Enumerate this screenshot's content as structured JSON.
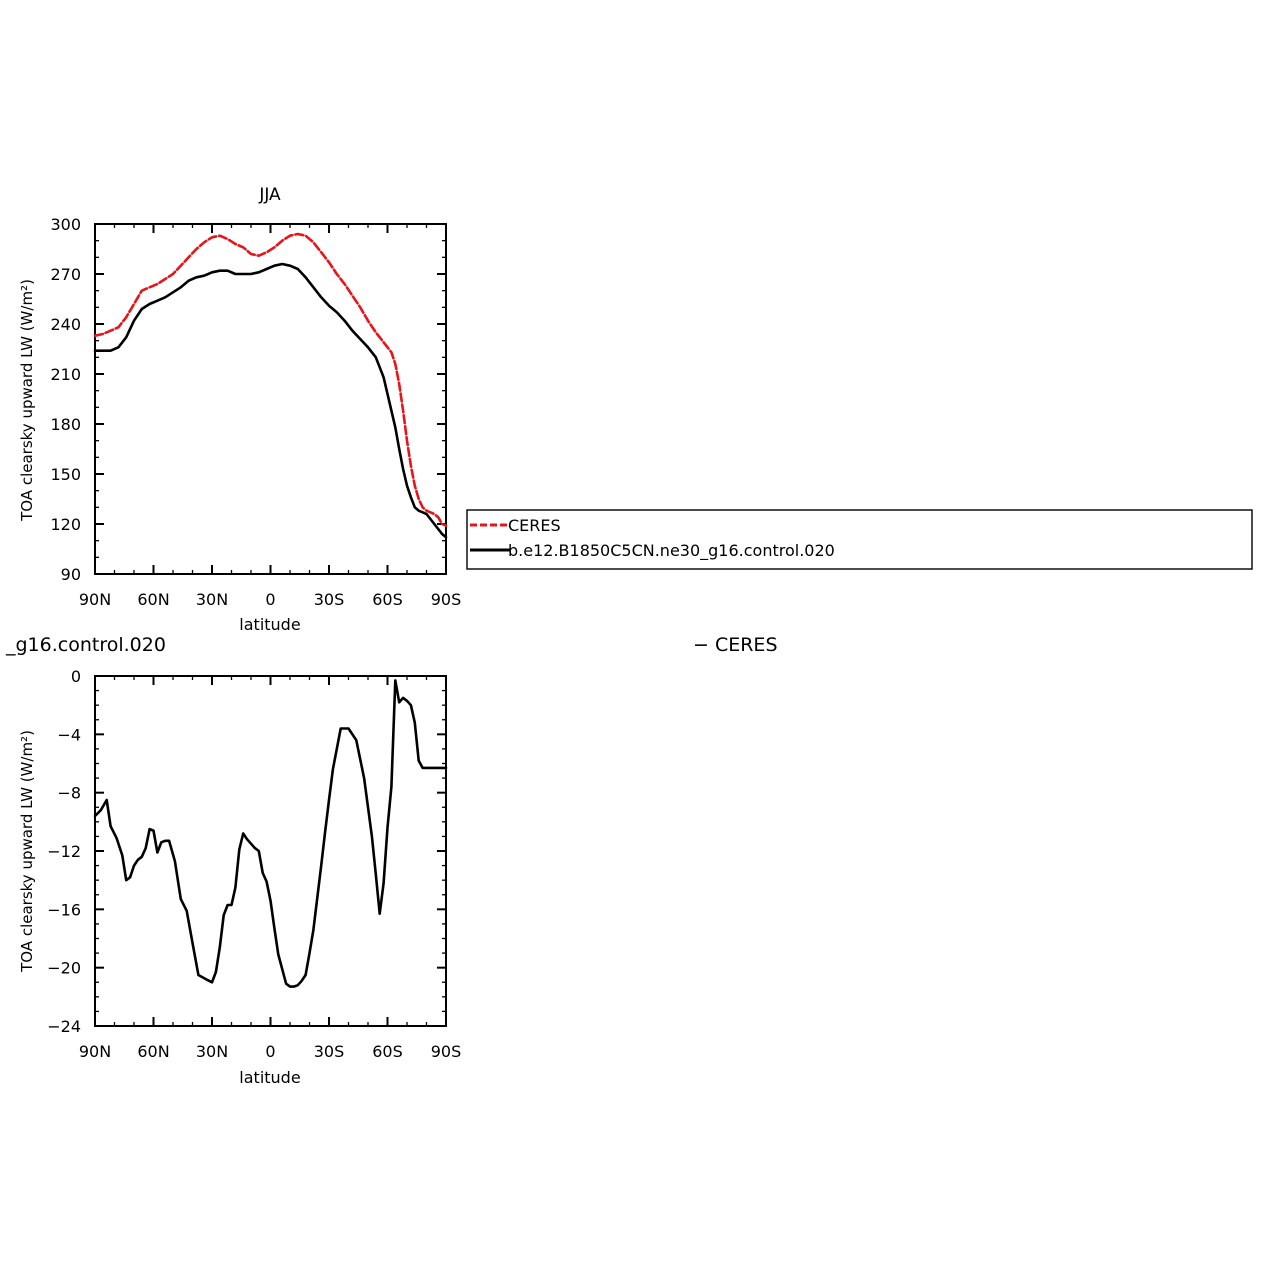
{
  "chart_data": [
    {
      "type": "line",
      "title": "JJA",
      "xlabel": "latitude",
      "ylabel": "TOA clearsky upward LW (W/m²)",
      "xlim": [
        90,
        -90
      ],
      "ylim": [
        90,
        300
      ],
      "x_ticks": [
        90,
        60,
        30,
        0,
        -30,
        -60,
        -90
      ],
      "x_tick_labels": [
        "90N",
        "60N",
        "30N",
        "0",
        "30S",
        "60S",
        "90S"
      ],
      "y_ticks": [
        90,
        120,
        150,
        180,
        210,
        240,
        270,
        300
      ],
      "y_tick_labels": [
        "90",
        "120",
        "150",
        "180",
        "210",
        "240",
        "270",
        "300"
      ],
      "grid": false,
      "legend": {
        "placement": "right",
        "entries": [
          "CERES",
          "b.e12.B1850C5CN.ne30_g16.control.020"
        ]
      },
      "series": [
        {
          "name": "CERES",
          "color": "#e8141a",
          "style": "dashed",
          "x": [
            90,
            86,
            82,
            78,
            74,
            70,
            66,
            62,
            58,
            54,
            50,
            46,
            42,
            38,
            34,
            30,
            26,
            22,
            18,
            14,
            10,
            6,
            2,
            -2,
            -6,
            -10,
            -14,
            -18,
            -22,
            -26,
            -30,
            -34,
            -38,
            -42,
            -46,
            -50,
            -54,
            -58,
            -60,
            -62,
            -64,
            -66,
            -68,
            -70,
            -72,
            -74,
            -76,
            -78,
            -80,
            -82,
            -84,
            -86,
            -88,
            -90
          ],
          "y": [
            233,
            234,
            236,
            238,
            244,
            252,
            260,
            262,
            264,
            267,
            270,
            275,
            280,
            285,
            289,
            292,
            293,
            291,
            288,
            286,
            282,
            281,
            283,
            286,
            290,
            293,
            294,
            293,
            289,
            283,
            277,
            270,
            264,
            257,
            250,
            242,
            235,
            229,
            226,
            223,
            216,
            204,
            188,
            170,
            155,
            143,
            135,
            130,
            128,
            127,
            126,
            124,
            120,
            119
          ]
        },
        {
          "name": "b.e12.B1850C5CN.ne30_g16.control.020",
          "color": "#000000",
          "style": "solid",
          "x": [
            90,
            86,
            82,
            78,
            74,
            70,
            66,
            62,
            58,
            54,
            50,
            46,
            42,
            38,
            34,
            30,
            26,
            22,
            18,
            14,
            10,
            6,
            2,
            -2,
            -6,
            -10,
            -14,
            -18,
            -22,
            -26,
            -30,
            -34,
            -38,
            -42,
            -46,
            -50,
            -54,
            -58,
            -60,
            -62,
            -64,
            -66,
            -68,
            -70,
            -72,
            -74,
            -76,
            -78,
            -80,
            -82,
            -84,
            -86,
            -88,
            -90
          ],
          "y": [
            224,
            224,
            224,
            226,
            232,
            242,
            249,
            252,
            254,
            256,
            259,
            262,
            266,
            268,
            269,
            271,
            272,
            272,
            270,
            270,
            270,
            271,
            273,
            275,
            276,
            275,
            273,
            268,
            262,
            256,
            251,
            247,
            242,
            236,
            231,
            226,
            220,
            208,
            198,
            188,
            178,
            165,
            153,
            143,
            136,
            130,
            128,
            127,
            126,
            123,
            120,
            117,
            114,
            112
          ]
        }
      ]
    },
    {
      "type": "line",
      "title": "_g16.control.020",
      "title_right": "− CERES",
      "xlabel": "latitude",
      "ylabel": "TOA clearsky upward LW (W/m²)",
      "xlim": [
        90,
        -90
      ],
      "ylim": [
        -24,
        0
      ],
      "x_ticks": [
        90,
        60,
        30,
        0,
        -30,
        -60,
        -90
      ],
      "x_tick_labels": [
        "90N",
        "60N",
        "30N",
        "0",
        "30S",
        "60S",
        "90S"
      ],
      "y_ticks": [
        0,
        -4,
        -8,
        -12,
        -16,
        -20,
        -24
      ],
      "y_tick_labels": [
        "0",
        "−4",
        "−8",
        "−12",
        "−16",
        "−20",
        "−24"
      ],
      "grid": false,
      "series": [
        {
          "color": "#000000",
          "style": "solid",
          "x": [
            90,
            87,
            84,
            82,
            79,
            76,
            74,
            72,
            70,
            68,
            66,
            64,
            62,
            60,
            58,
            56,
            54,
            52,
            49,
            46,
            43,
            40,
            37,
            33,
            30,
            28,
            26,
            24,
            22,
            20,
            18,
            16,
            14,
            12,
            10,
            8,
            6,
            4,
            2,
            0,
            -2,
            -4,
            -6,
            -8,
            -10,
            -12,
            -14,
            -16,
            -18,
            -20,
            -22,
            -24,
            -26,
            -28,
            -30,
            -32,
            -36,
            -40,
            -44,
            -48,
            -52,
            -54,
            -56,
            -58,
            -60,
            -62,
            -64,
            -66,
            -68,
            -70,
            -72,
            -74,
            -76,
            -78,
            -80,
            -82,
            -84,
            -86,
            -88,
            -90
          ],
          "y": [
            -9.6,
            -9.2,
            -8.5,
            -10.3,
            -11.1,
            -12.3,
            -14.0,
            -13.8,
            -13.0,
            -12.6,
            -12.4,
            -11.8,
            -10.5,
            -10.6,
            -12.1,
            -11.4,
            -11.3,
            -11.3,
            -12.7,
            -15.3,
            -16.1,
            -18.3,
            -20.5,
            -20.8,
            -21.0,
            -20.3,
            -18.6,
            -16.4,
            -15.7,
            -15.7,
            -14.5,
            -11.9,
            -10.8,
            -11.2,
            -11.5,
            -11.8,
            -12.0,
            -13.5,
            -14.1,
            -15.4,
            -17.3,
            -19.1,
            -20.1,
            -21.1,
            -21.3,
            -21.3,
            -21.2,
            -20.9,
            -20.5,
            -19.0,
            -17.4,
            -15.2,
            -13.0,
            -10.7,
            -8.5,
            -6.4,
            -3.6,
            -3.6,
            -4.4,
            -7.0,
            -11.0,
            -13.6,
            -16.3,
            -14.2,
            -10.4,
            -7.6,
            -0.3,
            -1.8,
            -1.5,
            -1.7,
            -2.0,
            -3.2,
            -5.8,
            -6.3,
            -6.3,
            -6.3,
            -6.3,
            -6.3,
            -6.3,
            -6.3
          ]
        }
      ]
    }
  ]
}
